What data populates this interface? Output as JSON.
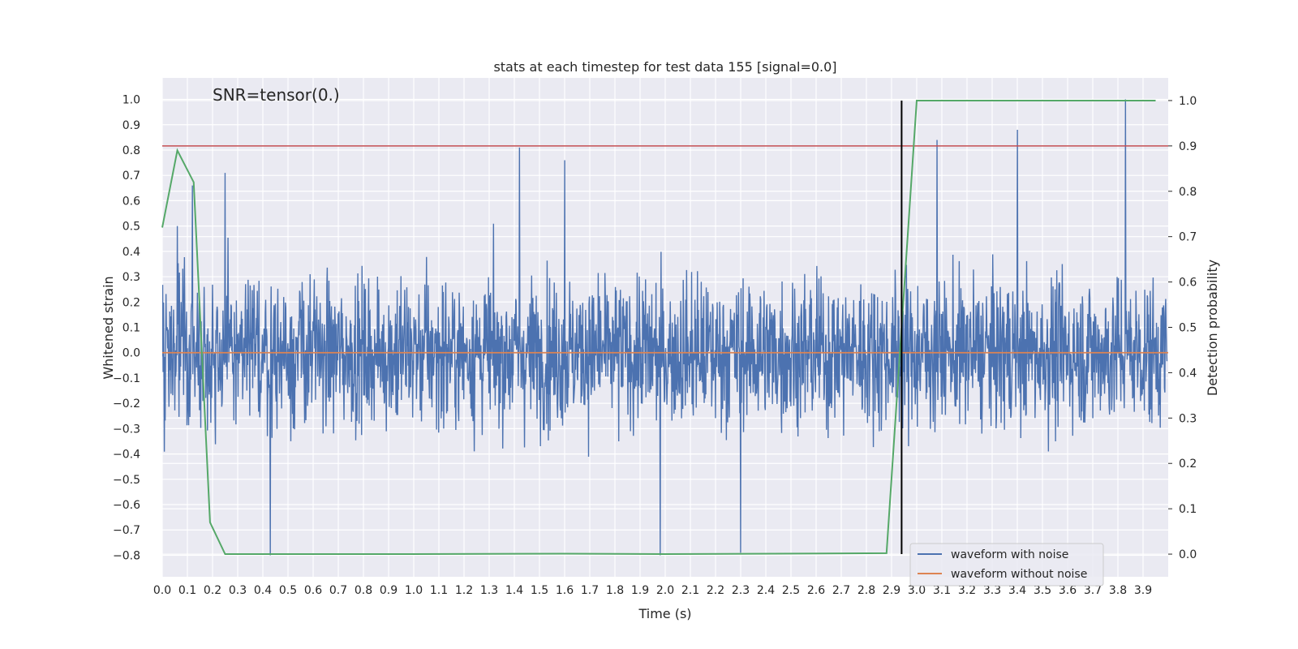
{
  "chart_data": {
    "type": "line",
    "title": "stats at each timestep for test data 155 [signal=0.0]",
    "xlabel": "Time (s)",
    "ylabel": "Whitened strain",
    "y2label": "Detection probability",
    "annotation": "SNR=tensor(0.)",
    "xlim": [
      0.0,
      4.0
    ],
    "ylim": [
      -0.885,
      1.085
    ],
    "y2lim": [
      -0.05,
      1.05
    ],
    "xticks": [
      "0.0",
      "0.1",
      "0.2",
      "0.3",
      "0.4",
      "0.5",
      "0.6",
      "0.7",
      "0.8",
      "0.9",
      "1.0",
      "1.1",
      "1.2",
      "1.3",
      "1.4",
      "1.5",
      "1.6",
      "1.7",
      "1.8",
      "1.9",
      "2.0",
      "2.1",
      "2.2",
      "2.3",
      "2.4",
      "2.5",
      "2.6",
      "2.7",
      "2.8",
      "2.9",
      "3.0",
      "3.1",
      "3.2",
      "3.3",
      "3.4",
      "3.5",
      "3.6",
      "3.7",
      "3.8",
      "3.9"
    ],
    "yticks": [
      "1.0",
      "0.9",
      "0.8",
      "0.7",
      "0.6",
      "0.5",
      "0.4",
      "0.3",
      "0.2",
      "0.1",
      "0.0",
      "−0.1",
      "−0.2",
      "−0.3",
      "−0.4",
      "−0.5",
      "−0.6",
      "−0.7",
      "−0.8"
    ],
    "y2ticks": [
      "1.0",
      "0.9",
      "0.8",
      "0.7",
      "0.6",
      "0.5",
      "0.4",
      "0.3",
      "0.2",
      "0.1",
      "0.0"
    ],
    "threshold": {
      "axis": "y2",
      "value": 0.9,
      "color": "#c44e52"
    },
    "marker_line": {
      "x": 2.94,
      "y2_from": 0.0,
      "y2_to": 1.0,
      "color": "#000000"
    },
    "series": [
      {
        "name": "waveform with noise",
        "color": "#4c72b0",
        "axis": "y",
        "note": "dense whitened-noise trace sampled across 0.0–3.995 s, amplitude mostly within ±0.5 with spikes",
        "n_points": 2400,
        "peaks": [
          {
            "x": 0.06,
            "y": 0.5
          },
          {
            "x": 0.12,
            "y": 0.66
          },
          {
            "x": 0.25,
            "y": 0.71
          },
          {
            "x": 0.43,
            "y": -0.8
          },
          {
            "x": 1.42,
            "y": 0.81
          },
          {
            "x": 1.6,
            "y": 0.76
          },
          {
            "x": 1.98,
            "y": -0.8
          },
          {
            "x": 2.3,
            "y": -0.79
          },
          {
            "x": 3.08,
            "y": 0.84
          },
          {
            "x": 3.4,
            "y": 0.88
          },
          {
            "x": 3.83,
            "y": 1.0
          }
        ]
      },
      {
        "name": "waveform without noise",
        "color": "#dd8452",
        "axis": "y",
        "x": [
          0.0,
          4.0
        ],
        "values": [
          0.0,
          0.0
        ]
      },
      {
        "name": "detection probability",
        "color": "#55a868",
        "axis": "y2",
        "x": [
          0.0,
          0.06,
          0.125,
          0.19,
          0.25,
          1.0,
          1.6,
          2.0,
          2.88,
          3.0,
          3.95
        ],
        "values": [
          0.72,
          0.89,
          0.82,
          0.07,
          0.0,
          0.0,
          0.001,
          0.0,
          0.002,
          1.0,
          1.0
        ]
      }
    ],
    "legend": {
      "position": "lower-right",
      "entries": [
        {
          "label": "waveform with noise",
          "color": "#4c72b0"
        },
        {
          "label": "waveform without noise",
          "color": "#dd8452"
        }
      ]
    }
  }
}
